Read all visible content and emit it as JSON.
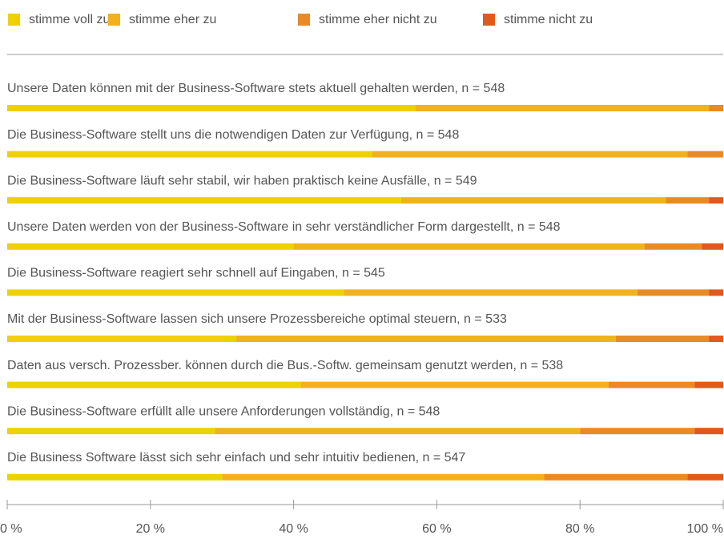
{
  "chart_data": {
    "type": "bar",
    "categories": [
      "Unsere Daten können mit der Business-Software stets aktuell gehalten werden, n = 548",
      "Die Business-Software stellt uns die notwendigen Daten zur Verfügung, n = 548",
      "Die Business-Software läuft sehr stabil, wir haben praktisch keine Ausfälle, n = 549",
      "Unsere Daten werden von der Business-Software in sehr verständlicher Form dargestellt, n = 548",
      "Die Business-Software reagiert sehr schnell auf Eingaben, n = 545",
      "Mit der Business-Software lassen sich unsere Prozessbereiche optimal steuern, n = 533",
      "Daten aus versch. Prozessber. können durch die Bus.-Softw. gemeinsam genutzt werden, n = 538",
      "Die Business-Software erfüllt alle unsere Anforderungen vollständig, n = 548",
      "Die Business Software lässt sich sehr einfach und sehr intuitiv bedienen, n = 547"
    ],
    "series": [
      {
        "name": "stimme voll zu",
        "color": "#efd000",
        "values": [
          57,
          51,
          55,
          40,
          47,
          32,
          41,
          29,
          30
        ]
      },
      {
        "name": "stimme eher zu",
        "color": "#f2b11f",
        "values": [
          41,
          44,
          37,
          49,
          41,
          53,
          43,
          51,
          45
        ]
      },
      {
        "name": "stimme eher nicht zu",
        "color": "#e88b26",
        "values": [
          2,
          5,
          6,
          8,
          10,
          13,
          12,
          16,
          20
        ]
      },
      {
        "name": "stimme nicht zu",
        "color": "#e05a1e",
        "values": [
          0,
          0,
          2,
          3,
          2,
          2,
          4,
          4,
          5
        ]
      }
    ],
    "xlim": [
      0,
      100
    ],
    "xticks": [
      {
        "value": 0,
        "label": "0 %"
      },
      {
        "value": 20,
        "label": "20 %"
      },
      {
        "value": 40,
        "label": "40 %"
      },
      {
        "value": 60,
        "label": "60 %"
      },
      {
        "value": 80,
        "label": "80 %"
      },
      {
        "value": 100,
        "label": "100 %"
      }
    ]
  }
}
